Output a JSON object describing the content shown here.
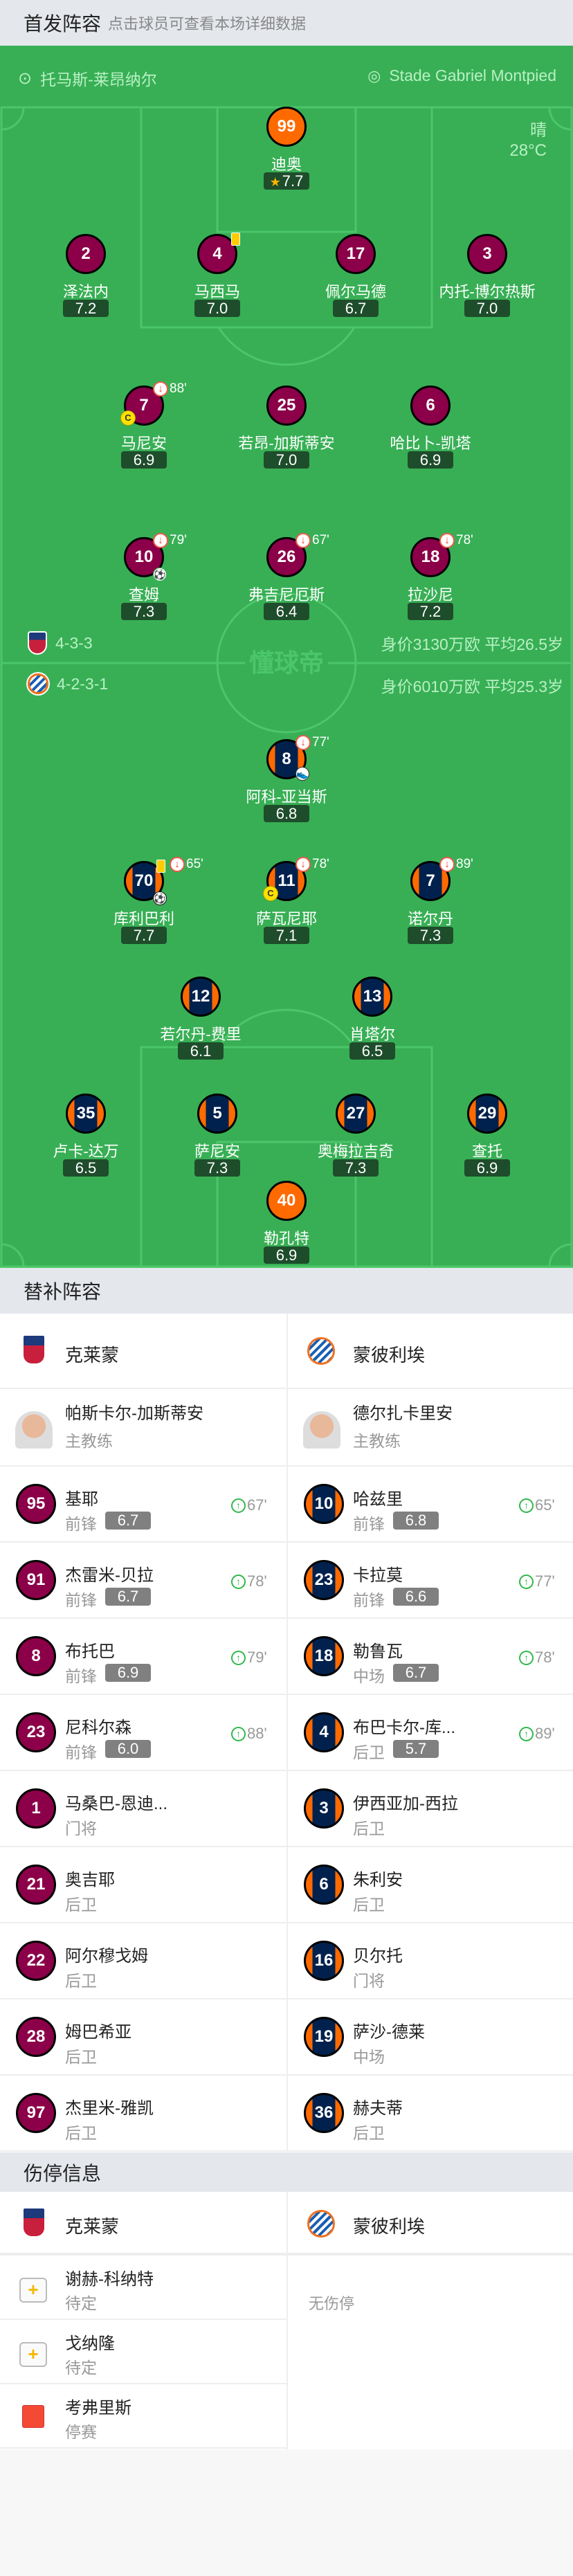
{
  "lineup": {
    "title": "首发阵容",
    "subtitle": "点击球员可查看本场详细数据"
  },
  "match": {
    "referee": "托马斯-莱昂纳尔",
    "stadium": "Stade Gabriel Montpied",
    "weather": "晴",
    "temperature": "28°C",
    "watermark": "懂球帝"
  },
  "colors": {
    "pitch": "#38af55",
    "home_shirt": "#8b0048",
    "away_shirt": "#00214d",
    "away_stripe": "#ff6a00",
    "goalkeeper": "#ff6a00",
    "rating_bg": "#1e4d2b",
    "sub_in": "#2fb84a",
    "sub_out": "#f03c28"
  },
  "home": {
    "formation": "4-3-3",
    "value": "身价3130万欧 平均26.5岁",
    "rows": [
      [
        {
          "number": "99",
          "name": "迪奥",
          "rating": "7.7",
          "mvp": true,
          "gk": true
        }
      ],
      [
        {
          "number": "2",
          "name": "泽法内",
          "rating": "7.2"
        },
        {
          "number": "4",
          "name": "马西马",
          "rating": "7.0",
          "yellow": true
        },
        {
          "number": "17",
          "name": "佩尔马德",
          "rating": "6.7"
        },
        {
          "number": "3",
          "name": "内托-博尔热斯",
          "rating": "7.0"
        }
      ],
      [
        {
          "number": "7",
          "name": "马尼安",
          "rating": "6.9",
          "sub_out": "88'",
          "captain": true
        },
        {
          "number": "25",
          "name": "若昂-加斯蒂安",
          "rating": "7.0"
        },
        {
          "number": "6",
          "name": "哈比卜-凯塔",
          "rating": "6.9"
        }
      ],
      [
        {
          "number": "10",
          "name": "查姆",
          "rating": "7.3",
          "sub_out": "79'",
          "goal": "green"
        },
        {
          "number": "26",
          "name": "弗吉尼厄斯",
          "rating": "6.4",
          "sub_out": "67'"
        },
        {
          "number": "18",
          "name": "拉沙尼",
          "rating": "7.2",
          "sub_out": "78'"
        }
      ]
    ]
  },
  "away": {
    "formation": "4-2-3-1",
    "value": "身价6010万欧 平均25.3岁",
    "rows": [
      [
        {
          "number": "8",
          "name": "阿科-亚当斯",
          "rating": "6.8",
          "sub_out": "77'",
          "assist": true
        }
      ],
      [
        {
          "number": "70",
          "name": "库利巴利",
          "rating": "7.7",
          "yellow": true,
          "sub_out": "65'",
          "goal": "black"
        },
        {
          "number": "11",
          "name": "萨瓦尼耶",
          "rating": "7.1",
          "sub_out": "78'",
          "captain": true
        },
        {
          "number": "7",
          "name": "诺尔丹",
          "rating": "7.3",
          "sub_out": "89'"
        }
      ],
      [
        {
          "number": "12",
          "name": "若尔丹-费里",
          "rating": "6.1"
        },
        {
          "number": "13",
          "name": "肖塔尔",
          "rating": "6.5"
        }
      ],
      [
        {
          "number": "35",
          "name": "卢卡-达万",
          "rating": "6.5"
        },
        {
          "number": "5",
          "name": "萨尼安",
          "rating": "7.3"
        },
        {
          "number": "27",
          "name": "奥梅拉吉奇",
          "rating": "7.3"
        },
        {
          "number": "29",
          "name": "查托",
          "rating": "6.9"
        }
      ],
      [
        {
          "number": "40",
          "name": "勒孔特",
          "rating": "6.9",
          "gk": true
        }
      ]
    ]
  },
  "subs": {
    "title": "替补阵容",
    "home_team": "克莱蒙",
    "away_team": "蒙彼利埃",
    "home_coach": {
      "name": "帕斯卡尔-加斯蒂安",
      "role": "主教练"
    },
    "away_coach": {
      "name": "德尔扎卡里安",
      "role": "主教练"
    },
    "home": [
      {
        "number": "95",
        "name": "基耶",
        "pos": "前锋",
        "rating": "6.7",
        "sub_in": "67'"
      },
      {
        "number": "91",
        "name": "杰雷米-贝拉",
        "pos": "前锋",
        "rating": "6.7",
        "sub_in": "78'"
      },
      {
        "number": "8",
        "name": "布托巴",
        "pos": "前锋",
        "rating": "6.9",
        "sub_in": "79'"
      },
      {
        "number": "23",
        "name": "尼科尔森",
        "pos": "前锋",
        "rating": "6.0",
        "sub_in": "88'"
      },
      {
        "number": "1",
        "name": "马桑巴-恩迪...",
        "pos": "门将"
      },
      {
        "number": "21",
        "name": "奥吉耶",
        "pos": "后卫"
      },
      {
        "number": "22",
        "name": "阿尔穆戈姆",
        "pos": "后卫"
      },
      {
        "number": "28",
        "name": "姆巴希亚",
        "pos": "后卫"
      },
      {
        "number": "97",
        "name": "杰里米-雅凯",
        "pos": "后卫"
      }
    ],
    "away": [
      {
        "number": "10",
        "name": "哈兹里",
        "pos": "前锋",
        "rating": "6.8",
        "sub_in": "65'"
      },
      {
        "number": "23",
        "name": "卡拉莫",
        "pos": "前锋",
        "rating": "6.6",
        "sub_in": "77'"
      },
      {
        "number": "18",
        "name": "勒鲁瓦",
        "pos": "中场",
        "rating": "6.7",
        "sub_in": "78'"
      },
      {
        "number": "4",
        "name": "布巴卡尔-库...",
        "pos": "后卫",
        "rating": "5.7",
        "sub_in": "89'"
      },
      {
        "number": "3",
        "name": "伊西亚加-西拉",
        "pos": "后卫"
      },
      {
        "number": "6",
        "name": "朱利安",
        "pos": "后卫"
      },
      {
        "number": "16",
        "name": "贝尔托",
        "pos": "门将"
      },
      {
        "number": "19",
        "name": "萨沙-德莱",
        "pos": "中场"
      },
      {
        "number": "36",
        "name": "赫夫蒂",
        "pos": "后卫"
      }
    ]
  },
  "injuries": {
    "title": "伤停信息",
    "home_team": "克莱蒙",
    "away_team": "蒙彼利埃",
    "home": [
      {
        "name": "谢赫-科纳特",
        "status": "待定",
        "icon": "medical-kit"
      },
      {
        "name": "戈纳隆",
        "status": "待定",
        "icon": "medical-kit"
      },
      {
        "name": "考弗里斯",
        "status": "停赛",
        "icon": "red-card"
      }
    ],
    "away_empty": "无伤停"
  }
}
